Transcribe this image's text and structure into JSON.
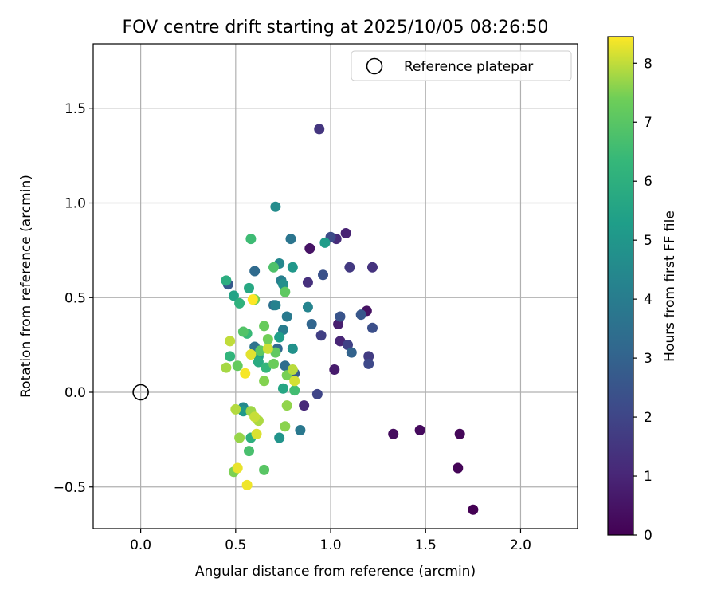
{
  "chart_data": {
    "type": "scatter",
    "title": "FOV centre drift starting at 2025/10/05 08:26:50",
    "xlabel": "Angular distance from reference (arcmin)",
    "ylabel": "Rotation from reference (arcmin)",
    "xlim": [
      -0.25,
      2.3
    ],
    "ylim": [
      -0.72,
      1.84
    ],
    "xticks": [
      0.0,
      0.5,
      1.0,
      1.5,
      2.0
    ],
    "xtick_labels": [
      "0.0",
      "0.5",
      "1.0",
      "1.5",
      "2.0"
    ],
    "yticks": [
      -0.5,
      0.0,
      0.5,
      1.0,
      1.5
    ],
    "ytick_labels": [
      "−0.5",
      "0.0",
      "0.5",
      "1.0",
      "1.5"
    ],
    "grid": true,
    "legend": {
      "position": "top-right",
      "label": "Reference platepar"
    },
    "reference_point": {
      "x": 0.0,
      "y": 0.0
    },
    "colorbar": {
      "label": "Hours from first FF file",
      "range": [
        0,
        8.45
      ],
      "ticks": [
        0,
        1,
        2,
        3,
        4,
        5,
        6,
        7,
        8
      ],
      "tick_labels": [
        "0",
        "1",
        "2",
        "3",
        "4",
        "5",
        "6",
        "7",
        "8"
      ],
      "colormap": "viridis"
    },
    "points": [
      {
        "x": 1.75,
        "y": -0.62,
        "h": 0.0
      },
      {
        "x": 1.67,
        "y": -0.4,
        "h": 0.1
      },
      {
        "x": 1.68,
        "y": -0.22,
        "h": 0.15
      },
      {
        "x": 1.47,
        "y": -0.2,
        "h": 0.25
      },
      {
        "x": 1.33,
        "y": -0.22,
        "h": 0.3
      },
      {
        "x": 1.19,
        "y": 0.43,
        "h": 0.45
      },
      {
        "x": 0.89,
        "y": 0.76,
        "h": 0.5
      },
      {
        "x": 1.02,
        "y": 0.12,
        "h": 0.7
      },
      {
        "x": 1.04,
        "y": 0.36,
        "h": 0.8
      },
      {
        "x": 1.08,
        "y": 0.84,
        "h": 0.9
      },
      {
        "x": 1.05,
        "y": 0.27,
        "h": 1.0
      },
      {
        "x": 0.86,
        "y": -0.07,
        "h": 1.1
      },
      {
        "x": 1.03,
        "y": 0.81,
        "h": 1.2
      },
      {
        "x": 0.88,
        "y": 0.58,
        "h": 1.3
      },
      {
        "x": 1.22,
        "y": 0.66,
        "h": 1.4
      },
      {
        "x": 0.94,
        "y": 1.39,
        "h": 1.5
      },
      {
        "x": 1.1,
        "y": 0.66,
        "h": 1.6
      },
      {
        "x": 1.2,
        "y": 0.19,
        "h": 1.7
      },
      {
        "x": 0.95,
        "y": 0.3,
        "h": 1.8
      },
      {
        "x": 1.09,
        "y": 0.25,
        "h": 1.9
      },
      {
        "x": 0.93,
        "y": -0.01,
        "h": 2.0
      },
      {
        "x": 1.2,
        "y": 0.15,
        "h": 2.1
      },
      {
        "x": 1.0,
        "y": 0.82,
        "h": 2.2
      },
      {
        "x": 1.22,
        "y": 0.34,
        "h": 2.3
      },
      {
        "x": 0.96,
        "y": 0.62,
        "h": 2.4
      },
      {
        "x": 1.05,
        "y": 0.4,
        "h": 2.5
      },
      {
        "x": 1.16,
        "y": 0.41,
        "h": 2.6
      },
      {
        "x": 0.46,
        "y": 0.57,
        "h": 2.7
      },
      {
        "x": 0.81,
        "y": 0.1,
        "h": 2.8
      },
      {
        "x": 1.11,
        "y": 0.21,
        "h": 3.0
      },
      {
        "x": 0.9,
        "y": 0.36,
        "h": 3.1
      },
      {
        "x": 0.72,
        "y": 0.23,
        "h": 3.2
      },
      {
        "x": 0.6,
        "y": 0.64,
        "h": 3.3
      },
      {
        "x": 0.76,
        "y": 0.14,
        "h": 3.4
      },
      {
        "x": 0.7,
        "y": 0.46,
        "h": 3.5
      },
      {
        "x": 0.6,
        "y": 0.24,
        "h": 3.6
      },
      {
        "x": 0.79,
        "y": 0.81,
        "h": 3.7
      },
      {
        "x": 0.84,
        "y": -0.2,
        "h": 3.8
      },
      {
        "x": 0.77,
        "y": 0.4,
        "h": 3.9
      },
      {
        "x": 0.75,
        "y": 0.33,
        "h": 4.0
      },
      {
        "x": 0.74,
        "y": 0.59,
        "h": 4.1
      },
      {
        "x": 0.71,
        "y": 0.46,
        "h": 4.2
      },
      {
        "x": 0.88,
        "y": 0.45,
        "h": 4.3
      },
      {
        "x": 0.73,
        "y": 0.68,
        "h": 4.4
      },
      {
        "x": 0.54,
        "y": -0.08,
        "h": 4.5
      },
      {
        "x": 0.71,
        "y": 0.98,
        "h": 4.6
      },
      {
        "x": 0.75,
        "y": 0.57,
        "h": 4.7
      },
      {
        "x": 0.8,
        "y": 0.23,
        "h": 4.8
      },
      {
        "x": 0.73,
        "y": -0.24,
        "h": 4.9
      },
      {
        "x": 0.8,
        "y": 0.66,
        "h": 5.0
      },
      {
        "x": 0.54,
        "y": -0.1,
        "h": 5.1
      },
      {
        "x": 0.97,
        "y": 0.79,
        "h": 5.2
      },
      {
        "x": 0.73,
        "y": 0.29,
        "h": 5.3
      },
      {
        "x": 0.62,
        "y": 0.19,
        "h": 5.4
      },
      {
        "x": 0.49,
        "y": 0.51,
        "h": 5.5
      },
      {
        "x": 0.75,
        "y": 0.02,
        "h": 5.6
      },
      {
        "x": 0.57,
        "y": 0.55,
        "h": 5.7
      },
      {
        "x": 0.62,
        "y": 0.16,
        "h": 5.8
      },
      {
        "x": 0.45,
        "y": 0.59,
        "h": 5.9
      },
      {
        "x": 0.58,
        "y": -0.24,
        "h": 6.0
      },
      {
        "x": 0.52,
        "y": 0.47,
        "h": 6.1
      },
      {
        "x": 0.47,
        "y": 0.19,
        "h": 6.2
      },
      {
        "x": 0.66,
        "y": 0.13,
        "h": 6.3
      },
      {
        "x": 0.56,
        "y": 0.31,
        "h": 6.4
      },
      {
        "x": 0.58,
        "y": 0.81,
        "h": 6.5
      },
      {
        "x": 0.81,
        "y": 0.01,
        "h": 6.6
      },
      {
        "x": 0.57,
        "y": -0.31,
        "h": 6.7
      },
      {
        "x": 0.7,
        "y": 0.66,
        "h": 6.8
      },
      {
        "x": 0.54,
        "y": 0.32,
        "h": 6.9
      },
      {
        "x": 0.65,
        "y": -0.41,
        "h": 7.0
      },
      {
        "x": 0.63,
        "y": 0.22,
        "h": 7.05
      },
      {
        "x": 0.76,
        "y": 0.53,
        "h": 7.1
      },
      {
        "x": 0.71,
        "y": 0.21,
        "h": 7.15
      },
      {
        "x": 0.51,
        "y": 0.14,
        "h": 7.2
      },
      {
        "x": 0.65,
        "y": 0.35,
        "h": 7.25
      },
      {
        "x": 0.7,
        "y": 0.15,
        "h": 7.3
      },
      {
        "x": 0.6,
        "y": 0.49,
        "h": 7.35
      },
      {
        "x": 0.67,
        "y": 0.28,
        "h": 7.4
      },
      {
        "x": 0.77,
        "y": 0.09,
        "h": 7.45
      },
      {
        "x": 0.49,
        "y": -0.42,
        "h": 7.5
      },
      {
        "x": 0.65,
        "y": 0.06,
        "h": 7.55
      },
      {
        "x": 0.76,
        "y": -0.18,
        "h": 7.6
      },
      {
        "x": 0.77,
        "y": -0.07,
        "h": 7.65
      },
      {
        "x": 0.52,
        "y": -0.24,
        "h": 7.7
      },
      {
        "x": 0.58,
        "y": -0.1,
        "h": 7.75
      },
      {
        "x": 0.45,
        "y": 0.13,
        "h": 7.8
      },
      {
        "x": 0.62,
        "y": -0.15,
        "h": 7.85
      },
      {
        "x": 0.5,
        "y": -0.09,
        "h": 7.9
      },
      {
        "x": 0.8,
        "y": 0.12,
        "h": 7.95
      },
      {
        "x": 0.47,
        "y": 0.27,
        "h": 8.0
      },
      {
        "x": 0.6,
        "y": -0.13,
        "h": 8.05
      },
      {
        "x": 0.67,
        "y": 0.23,
        "h": 8.1
      },
      {
        "x": 0.81,
        "y": 0.06,
        "h": 8.15
      },
      {
        "x": 0.61,
        "y": -0.22,
        "h": 8.2
      },
      {
        "x": 0.58,
        "y": 0.2,
        "h": 8.25
      },
      {
        "x": 0.51,
        "y": -0.4,
        "h": 8.3
      },
      {
        "x": 0.56,
        "y": -0.49,
        "h": 8.35
      },
      {
        "x": 0.55,
        "y": 0.1,
        "h": 8.4
      },
      {
        "x": 0.59,
        "y": 0.49,
        "h": 8.45
      }
    ]
  }
}
